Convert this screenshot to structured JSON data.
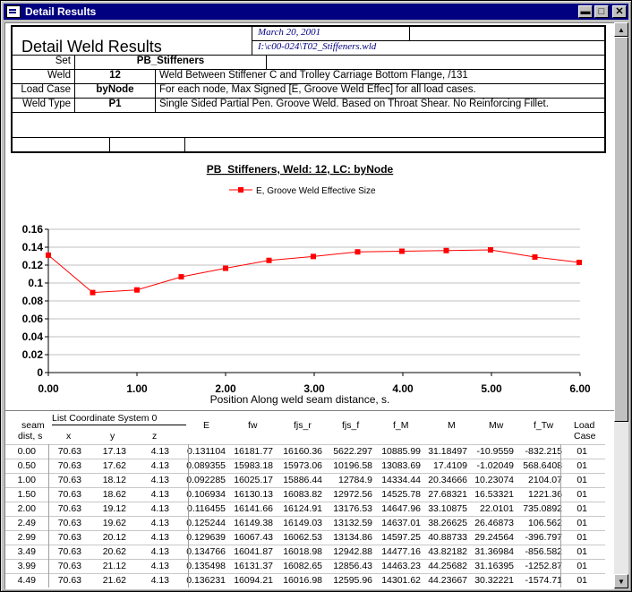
{
  "window": {
    "title": "Detail Results"
  },
  "header": {
    "heading": "Detail Weld Results",
    "date": "March 20, 2001",
    "file_path": "I:\\c00-024\\T02_Stiffeners.wld",
    "set_label": "Set",
    "set_value": "PB_Stiffeners",
    "weld_label": "Weld",
    "weld_value": "12",
    "weld_desc": "Weld Between Stiffener C and Trolley Carriage Bottom Flange, /131",
    "loadcase_label": "Load Case",
    "loadcase_value": "byNode",
    "loadcase_desc": "For each node, Max Signed [E, Groove Weld Effec] for all load cases.",
    "weldtype_label": "Weld Type",
    "weldtype_value": "P1",
    "weldtype_desc": "Single Sided Partial Pen. Groove Weld.  Based on Throat Shear.  No Reinforcing Fillet."
  },
  "chart_data": {
    "type": "line",
    "title": "PB_Stiffeners, Weld: 12, LC: byNode",
    "xlabel": "Position Along weld seam distance, s.",
    "ylabel": "",
    "xlim": [
      0,
      6
    ],
    "ylim": [
      0,
      0.16
    ],
    "x_ticks": [
      "0.00",
      "1.00",
      "2.00",
      "3.00",
      "4.00",
      "5.00",
      "6.00"
    ],
    "y_ticks": [
      "0",
      "0.02",
      "0.04",
      "0.06",
      "0.08",
      "0.1",
      "0.12",
      "0.14",
      "0.16"
    ],
    "legend_position": "top",
    "grid": true,
    "series": [
      {
        "name": "E, Groove Weld Effective Size",
        "color": "#ff0000",
        "x": [
          0,
          0.5,
          1.0,
          1.5,
          2.0,
          2.49,
          2.99,
          3.49,
          3.99,
          4.49,
          4.99,
          5.49,
          5.99
        ],
        "y": [
          0.131104,
          0.089355,
          0.092285,
          0.106934,
          0.116455,
          0.125244,
          0.129639,
          0.134766,
          0.135498,
          0.136231,
          0.137,
          0.129,
          0.123
        ]
      }
    ]
  },
  "table": {
    "headers": {
      "seam": "seam",
      "dist": "dist, s",
      "coord": "List Coordinate System 0",
      "x": "x",
      "y": "y",
      "z": "z",
      "E": "E",
      "fw": "fw",
      "fjs_r": "fjs_r",
      "fjs_f": "fjs_f",
      "f_M": "f_M",
      "M": "M",
      "Mw": "Mw",
      "f_Tw": "f_Tw",
      "load": "Load",
      "case": "Case"
    },
    "rows": [
      [
        "0.00",
        "70.63",
        "17.13",
        "4.13",
        "0.131104",
        "16181.77",
        "16160.36",
        "5622.297",
        "10885.99",
        "31.18497",
        "-10.9559",
        "-832.215",
        "01"
      ],
      [
        "0.50",
        "70.63",
        "17.62",
        "4.13",
        "0.089355",
        "15983.18",
        "15973.06",
        "10196.58",
        "13083.69",
        "17.4109",
        "-1.02049",
        "568.6408",
        "01"
      ],
      [
        "1.00",
        "70.63",
        "18.12",
        "4.13",
        "0.092285",
        "16025.17",
        "15886.44",
        "12784.9",
        "14334.44",
        "20.34666",
        "10.23074",
        "2104.07",
        "01"
      ],
      [
        "1.50",
        "70.63",
        "18.62",
        "4.13",
        "0.106934",
        "16130.13",
        "16083.82",
        "12972.56",
        "14525.78",
        "27.68321",
        "16.53321",
        "1221.36",
        "01"
      ],
      [
        "2.00",
        "70.63",
        "19.12",
        "4.13",
        "0.116455",
        "16141.66",
        "16124.91",
        "13176.53",
        "14647.96",
        "33.10875",
        "22.0101",
        "735.0892",
        "01"
      ],
      [
        "2.49",
        "70.63",
        "19.62",
        "4.13",
        "0.125244",
        "16149.38",
        "16149.03",
        "13132.59",
        "14637.01",
        "38.26625",
        "26.46873",
        "106.562",
        "01"
      ],
      [
        "2.99",
        "70.63",
        "20.12",
        "4.13",
        "0.129639",
        "16067.43",
        "16062.53",
        "13134.86",
        "14597.25",
        "40.88733",
        "29.24564",
        "-396.797",
        "01"
      ],
      [
        "3.49",
        "70.63",
        "20.62",
        "4.13",
        "0.134766",
        "16041.87",
        "16018.98",
        "12942.88",
        "14477.16",
        "43.82182",
        "31.36984",
        "-856.582",
        "01"
      ],
      [
        "3.99",
        "70.63",
        "21.12",
        "4.13",
        "0.135498",
        "16131.37",
        "16082.65",
        "12856.43",
        "14463.23",
        "44.25682",
        "31.16395",
        "-1252.87",
        "01"
      ],
      [
        "4.49",
        "70.63",
        "21.62",
        "4.13",
        "0.136231",
        "16094.21",
        "16016.98",
        "12595.96",
        "14301.62",
        "44.23667",
        "30.32221",
        "-1574.71",
        "01"
      ]
    ]
  }
}
